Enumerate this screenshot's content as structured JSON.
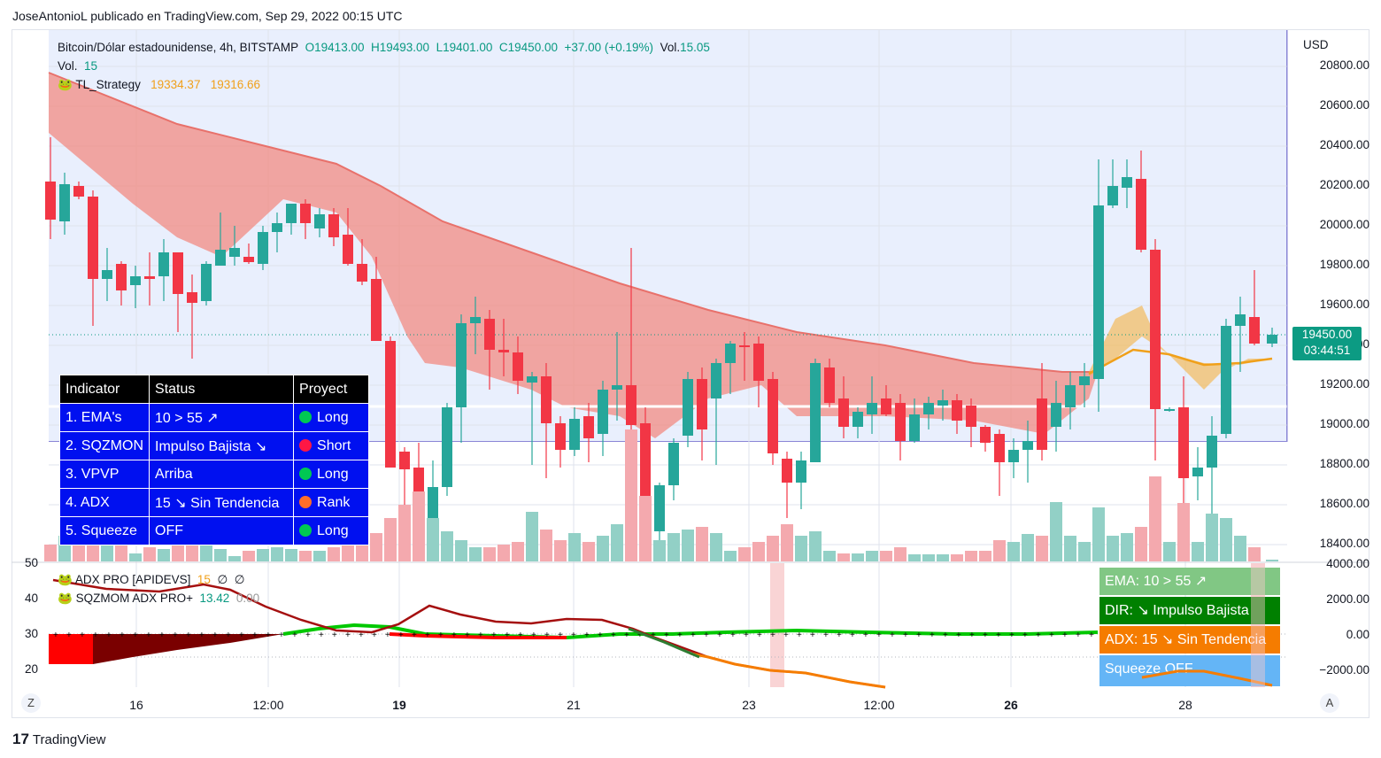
{
  "publish_line": "JoseAntonioL publicado en TradingView.com, Sep 29, 2022 00:15 UTC",
  "symbol_line": {
    "name": "Bitcoin/Dólar estadounidense, 4h, BITSTAMP",
    "open": "O19413.00",
    "high": "H19493.00",
    "low": "L19401.00",
    "close": "C19450.00",
    "change": "+37.00 (+0.19%)",
    "vol_label": "Vol.",
    "vol_value": "15.05"
  },
  "vol_line": {
    "label": "Vol.",
    "value": "15"
  },
  "strategy_line": {
    "name": "TL_Strategy",
    "v1": "19334.37",
    "v2": "19316.66"
  },
  "currency": "USD",
  "price_axis": [
    "20800.00",
    "20600.00",
    "20400.00",
    "20200.00",
    "20000.00",
    "19800.00",
    "19600.00",
    "19400.00",
    "19200.00",
    "19000.00",
    "18800.00",
    "18600.00",
    "18400.00"
  ],
  "price_tag": {
    "price": "19450.00",
    "countdown": "03:44:51"
  },
  "indicator_table": {
    "headers": [
      "Indicator",
      "Status",
      "Proyect"
    ],
    "rows": [
      {
        "indicator": "1. EMA's",
        "status": "10 > 55 ↗",
        "proyect": "Long",
        "dot": "#00c853"
      },
      {
        "indicator": "2. SQZMON",
        "status": "Impulso Bajista ↘",
        "proyect": "Short",
        "dot": "#ff1744"
      },
      {
        "indicator": "3. VPVP",
        "status": "Arriba",
        "proyect": "Long",
        "dot": "#00c853"
      },
      {
        "indicator": "4. ADX",
        "status": "15 ↘ Sin Tendencia",
        "proyect": "Rank",
        "dot": "#ff6d2a"
      },
      {
        "indicator": "5. Squeeze",
        "status": "OFF",
        "proyect": "Long",
        "dot": "#00c853"
      }
    ]
  },
  "sub_legend": {
    "adx_name": "ADX PRO [APIDEVS]",
    "adx_v1": "15",
    "adx_v2": "∅",
    "adx_v3": "∅",
    "sqz_name": "SQZMOM ADX PRO+",
    "sqz_v1": "13.42",
    "sqz_v2": "0.00"
  },
  "left_axis": [
    "50",
    "40",
    "30",
    "20"
  ],
  "sub_axis": [
    "4000.00",
    "2000.00",
    "0.00",
    "−2000.00"
  ],
  "info_boxes": [
    {
      "text": "EMA: 10 > 55 ↗",
      "color": "#81c784"
    },
    {
      "text": "DIR: ↘ Impulso Bajista",
      "color": "#008000"
    },
    {
      "text": "ADX: 15 ↘ Sin Tendencia",
      "color": "#f57c00"
    },
    {
      "text": "Squeeze OFF",
      "color": "#64b5f6"
    }
  ],
  "time_axis": [
    "16",
    "12:00",
    "19",
    "21",
    "23",
    "12:00",
    "26",
    "28"
  ],
  "buttons": {
    "zoom_left": "Z",
    "auto_right": "A"
  },
  "brand": "TradingView",
  "colors": {
    "up": "#26a69a",
    "down": "#f23645",
    "cloud": "#f28b82",
    "band": "#f5b041"
  }
}
